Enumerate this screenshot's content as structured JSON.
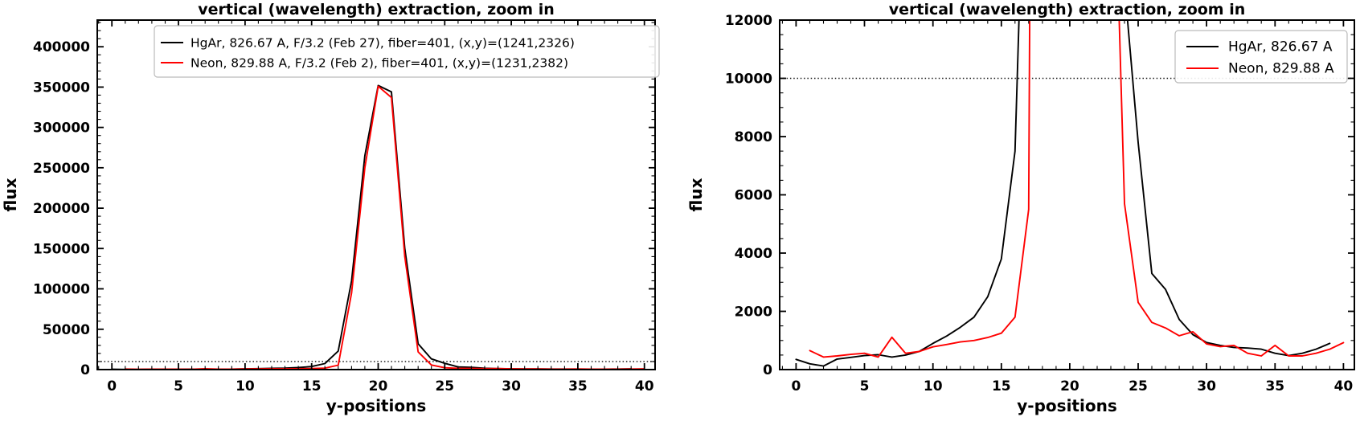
{
  "figure": {
    "background": "#ffffff",
    "accent_colors": {
      "hgar_line": "#000000",
      "neon_line": "#ff0000"
    }
  },
  "chart_data": [
    {
      "type": "line",
      "title": "vertical (wavelength) extraction, zoom in",
      "xlabel": "y-positions",
      "ylabel": "flux",
      "xlim": [
        -1.1,
        40.8
      ],
      "ylim": [
        0,
        433000
      ],
      "xticks": [
        0,
        5,
        10,
        15,
        20,
        25,
        30,
        35,
        40
      ],
      "xtick_labels": [
        "0",
        "5",
        "10",
        "15",
        "20",
        "25",
        "30",
        "35",
        "40"
      ],
      "yticks": [
        0,
        50000,
        100000,
        150000,
        200000,
        250000,
        300000,
        350000,
        400000
      ],
      "ytick_labels": [
        "0",
        "50000",
        "100000",
        "150000",
        "200000",
        "250000",
        "300000",
        "350000",
        "400000"
      ],
      "minor_x_step": 1,
      "minor_y_step": 10000,
      "grid": false,
      "threshold_line_y": 10000,
      "legend_position": "upper right",
      "legend": [
        {
          "label": "HgAr, 826.67 A, F/3.2 (Feb 27), fiber=401, (x,y)=(1241,2326)",
          "color": "#000000"
        },
        {
          "label": "Neon, 829.88 A, F/3.2 (Feb 2), fiber=401, (x,y)=(1231,2382)",
          "color": "#ff0000"
        }
      ],
      "series": [
        {
          "name": "HgAr",
          "color": "#000000",
          "x": [
            0,
            1,
            2,
            3,
            4,
            5,
            6,
            7,
            8,
            9,
            10,
            11,
            12,
            13,
            14,
            15,
            16,
            17,
            18,
            19,
            20,
            21,
            22,
            23,
            24,
            25,
            26,
            27,
            28,
            29,
            30,
            31,
            32,
            33,
            34,
            35,
            36,
            37,
            38,
            39
          ],
          "y": [
            350,
            200,
            120,
            360,
            420,
            480,
            510,
            430,
            500,
            620,
            900,
            1150,
            1450,
            1800,
            2500,
            3800,
            7500,
            23000,
            110000,
            265000,
            352000,
            344000,
            150000,
            32000,
            13200,
            7800,
            3300,
            2750,
            1720,
            1200,
            930,
            830,
            760,
            740,
            700,
            560,
            480,
            560,
            700,
            900
          ]
        },
        {
          "name": "Neon",
          "color": "#ff0000",
          "x": [
            1,
            2,
            3,
            4,
            5,
            6,
            7,
            8,
            9,
            10,
            11,
            12,
            13,
            14,
            15,
            16,
            17,
            18,
            19,
            20,
            21,
            22,
            23,
            24,
            25,
            26,
            27,
            28,
            29,
            30,
            31,
            32,
            33,
            34,
            35,
            36,
            37,
            38,
            39,
            40
          ],
          "y": [
            650,
            430,
            470,
            520,
            560,
            430,
            1110,
            560,
            620,
            780,
            860,
            950,
            1000,
            1100,
            1250,
            1800,
            5500,
            95000,
            250000,
            351000,
            337000,
            140000,
            22000,
            5700,
            2310,
            1620,
            1430,
            1160,
            1300,
            880,
            790,
            830,
            560,
            470,
            830,
            470,
            470,
            560,
            700,
            925
          ]
        }
      ]
    },
    {
      "type": "line",
      "title": "vertical (wavelength) extraction, zoom in",
      "xlabel": "y-positions",
      "ylabel": "flux",
      "xlim": [
        -1.2,
        40.8
      ],
      "ylim": [
        0,
        12000
      ],
      "xticks": [
        0,
        5,
        10,
        15,
        20,
        25,
        30,
        35,
        40
      ],
      "xtick_labels": [
        "0",
        "5",
        "10",
        "15",
        "20",
        "25",
        "30",
        "35",
        "40"
      ],
      "yticks": [
        0,
        2000,
        4000,
        6000,
        8000,
        10000,
        12000
      ],
      "ytick_labels": [
        "0",
        "2000",
        "4000",
        "6000",
        "8000",
        "10000",
        "12000"
      ],
      "minor_x_step": 1,
      "minor_y_step": 500,
      "grid": false,
      "threshold_line_y": 10000,
      "legend_position": "upper right",
      "legend": [
        {
          "label": "HgAr, 826.67 A",
          "color": "#000000"
        },
        {
          "label": "Neon, 829.88 A",
          "color": "#ff0000"
        }
      ],
      "series": [
        {
          "name": "HgAr",
          "color": "#000000",
          "x": [
            0,
            1,
            2,
            3,
            4,
            5,
            6,
            7,
            8,
            9,
            10,
            11,
            12,
            13,
            14,
            15,
            16,
            17,
            18,
            19,
            20,
            21,
            22,
            23,
            24,
            25,
            26,
            27,
            28,
            29,
            30,
            31,
            32,
            33,
            34,
            35,
            36,
            37,
            38,
            39
          ],
          "y": [
            350,
            200,
            120,
            360,
            420,
            480,
            510,
            430,
            500,
            620,
            900,
            1150,
            1450,
            1800,
            2500,
            3800,
            7500,
            23000,
            110000,
            265000,
            352000,
            344000,
            150000,
            32000,
            13200,
            7800,
            3300,
            2750,
            1720,
            1200,
            930,
            830,
            760,
            740,
            700,
            560,
            480,
            560,
            700,
            900
          ]
        },
        {
          "name": "Neon",
          "color": "#ff0000",
          "x": [
            1,
            2,
            3,
            4,
            5,
            6,
            7,
            8,
            9,
            10,
            11,
            12,
            13,
            14,
            15,
            16,
            17,
            18,
            19,
            20,
            21,
            22,
            23,
            24,
            25,
            26,
            27,
            28,
            29,
            30,
            31,
            32,
            33,
            34,
            35,
            36,
            37,
            38,
            39,
            40
          ],
          "y": [
            650,
            430,
            470,
            520,
            560,
            430,
            1110,
            560,
            620,
            780,
            860,
            950,
            1000,
            1100,
            1250,
            1800,
            5500,
            95000,
            250000,
            351000,
            337000,
            140000,
            22000,
            5700,
            2310,
            1620,
            1430,
            1160,
            1300,
            880,
            790,
            830,
            560,
            470,
            830,
            470,
            470,
            560,
            700,
            925
          ]
        }
      ]
    }
  ]
}
